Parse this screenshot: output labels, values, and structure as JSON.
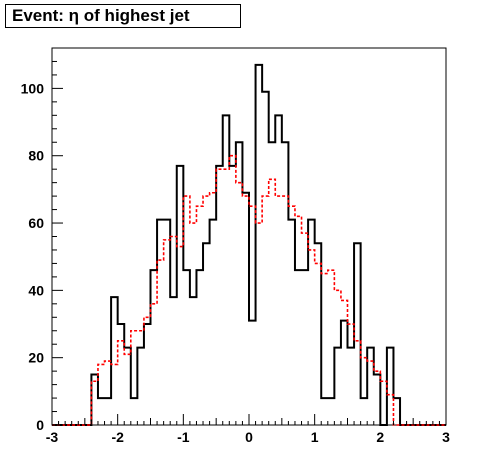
{
  "chart_data": {
    "type": "line",
    "title": "Event: η of highest jet",
    "xlabel": "",
    "ylabel": "",
    "xlim": [
      -3,
      3
    ],
    "ylim": [
      0,
      112
    ],
    "x_ticks": [
      -3,
      -2,
      -1,
      0,
      1,
      2,
      3
    ],
    "y_ticks": [
      0,
      20,
      40,
      60,
      80,
      100
    ],
    "bin_width": 0.1,
    "series": [
      {
        "color": "#000000",
        "style": "solid",
        "x_start": -2.4,
        "values": [
          15,
          8,
          8,
          38,
          30,
          23,
          8,
          23,
          30,
          46,
          61,
          61,
          38,
          77,
          46,
          38,
          46,
          54,
          61,
          77,
          92,
          77,
          84,
          69,
          31,
          107,
          99,
          84,
          92,
          84,
          61,
          46,
          46,
          61,
          54,
          8,
          8,
          23,
          31,
          23,
          54,
          8,
          23,
          15,
          0,
          23,
          8
        ]
      },
      {
        "color": "#ff0000",
        "style": "dashed",
        "x_start": -2.4,
        "values": [
          13,
          18,
          19,
          18,
          25,
          21,
          28,
          28,
          32,
          36,
          49,
          55,
          56,
          53,
          68,
          60,
          65,
          68,
          69,
          76,
          76,
          80,
          72,
          68,
          65,
          60,
          68,
          73,
          68,
          68,
          65,
          62,
          57,
          52,
          48,
          45,
          46,
          40,
          37,
          30,
          25,
          20,
          19,
          16,
          13,
          9,
          0
        ]
      }
    ]
  }
}
